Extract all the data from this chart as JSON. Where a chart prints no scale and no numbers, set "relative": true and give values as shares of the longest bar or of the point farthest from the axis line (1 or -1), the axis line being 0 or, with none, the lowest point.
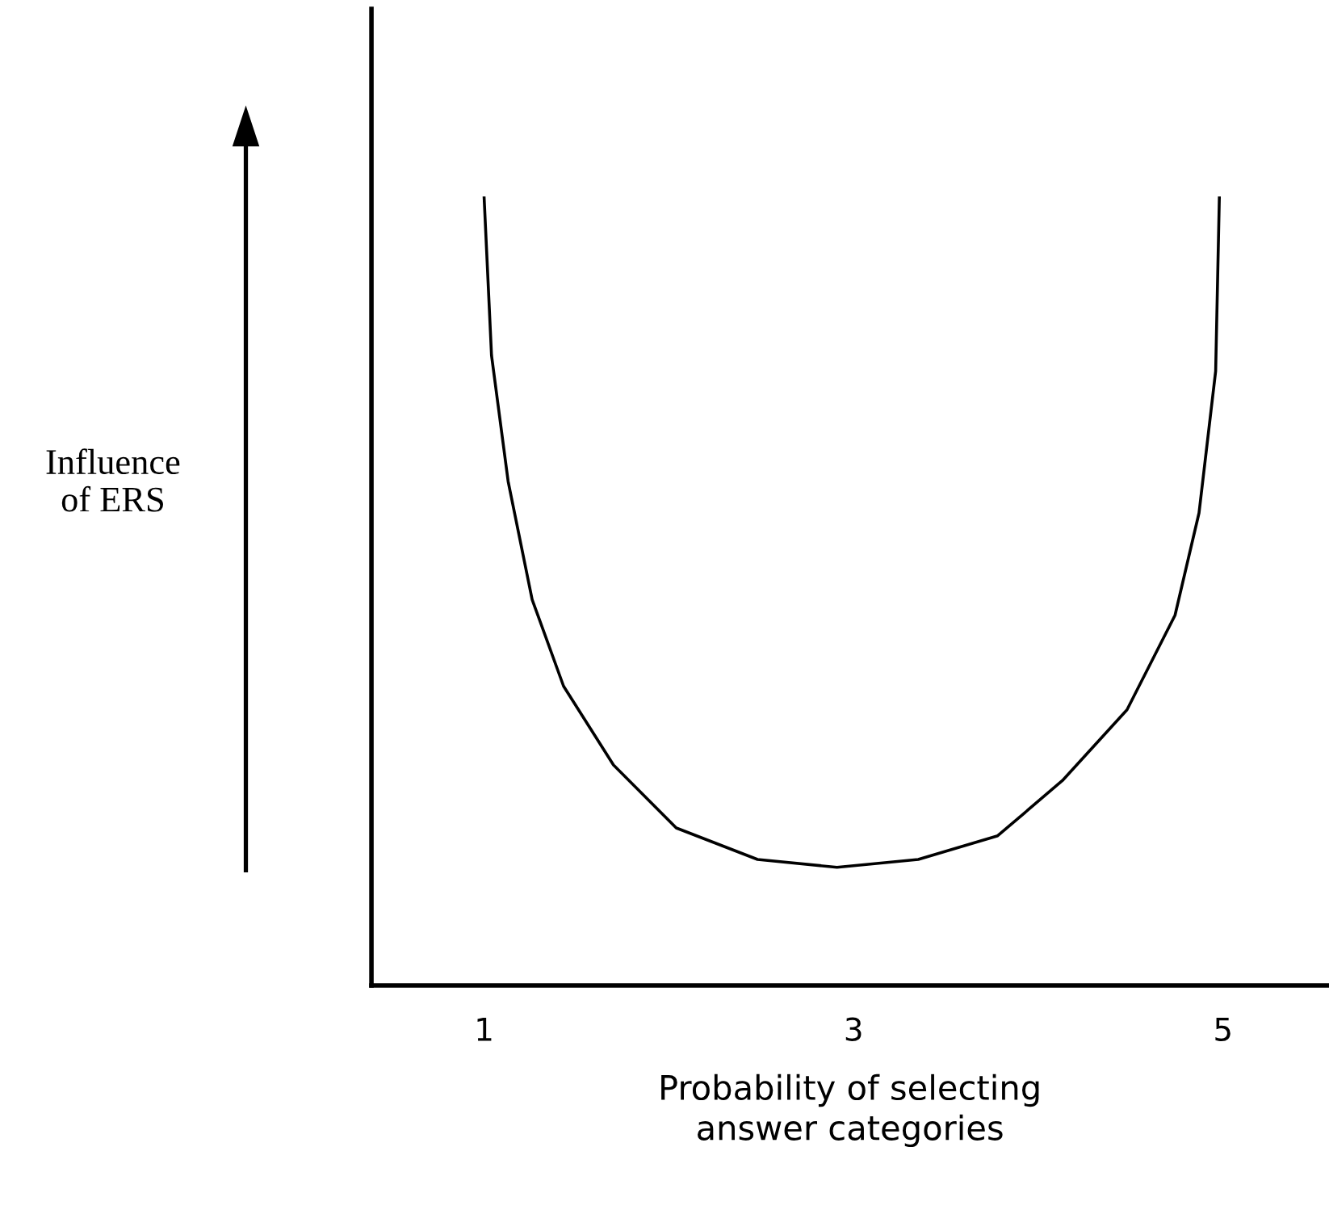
{
  "chart_data": {
    "type": "line",
    "relative": true,
    "xlabel": "Probability of selecting\nanswer categories",
    "annotations": [
      "Influence\nof ERS"
    ],
    "xlim": [
      0.39,
      5.57
    ],
    "xticks": [
      1,
      3,
      5
    ],
    "tick_labels": "x",
    "grid": false,
    "marker": "none",
    "line_style": "solid",
    "series": [
      {
        "color": "#000000",
        "x": [
          1.0,
          1.04,
          1.13,
          1.26,
          1.43,
          1.7,
          2.04,
          2.48,
          2.91,
          3.35,
          3.78,
          4.13,
          4.48,
          4.74,
          4.87,
          4.96,
          4.98
        ],
        "values": [
          1.0,
          0.8,
          0.64,
          0.49,
          0.38,
          0.28,
          0.2,
          0.16,
          0.15,
          0.16,
          0.19,
          0.26,
          0.35,
          0.47,
          0.6,
          0.78,
          1.0
        ]
      }
    ]
  }
}
